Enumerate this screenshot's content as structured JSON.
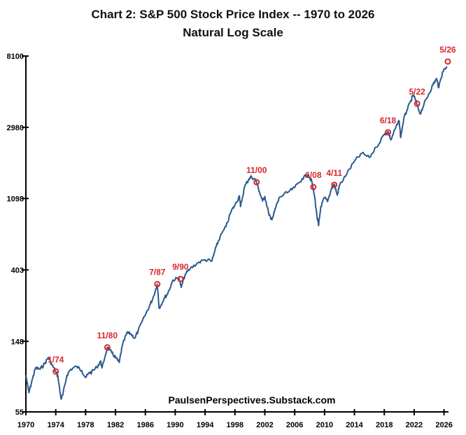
{
  "chart_data": {
    "type": "line",
    "title": "Chart 2: S&P 500 Stock Price Index -- 1970 to 2026",
    "subtitle": "Natural Log Scale",
    "source": "PaulsenPerspectives.Substack.com",
    "yscale": "log",
    "ylim": [
      55,
      8100
    ],
    "xlim": [
      1970,
      2026.6
    ],
    "x_ticks": [
      "1970",
      "1974",
      "1978",
      "1982",
      "1986",
      "1990",
      "1994",
      "1998",
      "2002",
      "2006",
      "2010",
      "2014",
      "2018",
      "2022",
      "2026"
    ],
    "y_ticks": [
      "55",
      "148",
      "403",
      "1098",
      "2980",
      "8100"
    ],
    "grid": false,
    "colors": {
      "line": "#2a5a8c",
      "annotation": "#d9262b",
      "axis": "#000000"
    },
    "series": [
      {
        "points": [
          [
            1970.0,
            92
          ],
          [
            1970.4,
            72
          ],
          [
            1970.9,
            88
          ],
          [
            1971.3,
            102
          ],
          [
            1971.9,
            100
          ],
          [
            1972.5,
            108
          ],
          [
            1973.0,
            118
          ],
          [
            1973.5,
            106
          ],
          [
            1974.0,
            97
          ],
          [
            1974.3,
            90
          ],
          [
            1974.7,
            66
          ],
          [
            1974.95,
            70
          ],
          [
            1975.5,
            92
          ],
          [
            1976.0,
            100
          ],
          [
            1976.8,
            104
          ],
          [
            1977.5,
            98
          ],
          [
            1978.0,
            89
          ],
          [
            1978.5,
            95
          ],
          [
            1978.8,
            96
          ],
          [
            1979.5,
            103
          ],
          [
            1980.0,
            112
          ],
          [
            1980.2,
            102
          ],
          [
            1980.9,
            136
          ],
          [
            1981.5,
            126
          ],
          [
            1982.0,
            118
          ],
          [
            1982.5,
            110
          ],
          [
            1982.9,
            138
          ],
          [
            1983.5,
            166
          ],
          [
            1984.0,
            165
          ],
          [
            1984.6,
            155
          ],
          [
            1985.0,
            170
          ],
          [
            1985.9,
            210
          ],
          [
            1986.5,
            240
          ],
          [
            1987.0,
            270
          ],
          [
            1987.6,
            330
          ],
          [
            1987.85,
            235
          ],
          [
            1988.5,
            270
          ],
          [
            1989.0,
            290
          ],
          [
            1989.7,
            350
          ],
          [
            1990.5,
            360
          ],
          [
            1990.8,
            315
          ],
          [
            1991.3,
            375
          ],
          [
            1992.0,
            410
          ],
          [
            1993.0,
            445
          ],
          [
            1994.0,
            465
          ],
          [
            1994.9,
            455
          ],
          [
            1995.5,
            560
          ],
          [
            1996.0,
            640
          ],
          [
            1996.8,
            740
          ],
          [
            1997.5,
            920
          ],
          [
            1998.0,
            1000
          ],
          [
            1998.6,
            1140
          ],
          [
            1998.75,
            980
          ],
          [
            1999.3,
            1300
          ],
          [
            1999.9,
            1450
          ],
          [
            2000.2,
            1490
          ],
          [
            2000.8,
            1420
          ],
          [
            2001.3,
            1200
          ],
          [
            2001.7,
            1060
          ],
          [
            2002.0,
            1130
          ],
          [
            2002.5,
            900
          ],
          [
            2002.8,
            820
          ],
          [
            2003.1,
            850
          ],
          [
            2003.5,
            980
          ],
          [
            2004.0,
            1120
          ],
          [
            2005.0,
            1190
          ],
          [
            2006.0,
            1280
          ],
          [
            2007.0,
            1450
          ],
          [
            2007.8,
            1540
          ],
          [
            2008.3,
            1390
          ],
          [
            2008.7,
            1100
          ],
          [
            2009.0,
            840
          ],
          [
            2009.2,
            750
          ],
          [
            2009.5,
            980
          ],
          [
            2010.0,
            1110
          ],
          [
            2010.4,
            1050
          ],
          [
            2011.0,
            1290
          ],
          [
            2011.3,
            1340
          ],
          [
            2011.7,
            1150
          ],
          [
            2012.0,
            1320
          ],
          [
            2013.0,
            1560
          ],
          [
            2014.0,
            1850
          ],
          [
            2015.0,
            2070
          ],
          [
            2016.0,
            1950
          ],
          [
            2016.9,
            2250
          ],
          [
            2018.0,
            2700
          ],
          [
            2018.5,
            2800
          ],
          [
            2018.9,
            2500
          ],
          [
            2019.5,
            2950
          ],
          [
            2020.0,
            3250
          ],
          [
            2020.2,
            2580
          ],
          [
            2020.6,
            3350
          ],
          [
            2021.0,
            3750
          ],
          [
            2021.6,
            4350
          ],
          [
            2021.9,
            4700
          ],
          [
            2022.3,
            4200
          ],
          [
            2022.8,
            3600
          ],
          [
            2023.3,
            4100
          ],
          [
            2023.9,
            4700
          ],
          [
            2024.5,
            5400
          ],
          [
            2025.0,
            5900
          ],
          [
            2025.3,
            5200
          ],
          [
            2025.8,
            6500
          ],
          [
            2026.4,
            7000
          ]
        ]
      }
    ],
    "annotations": [
      {
        "label": "1/74",
        "x": 1974.0,
        "y": 97
      },
      {
        "label": "11/80",
        "x": 1980.9,
        "y": 136
      },
      {
        "label": "7/87",
        "x": 1987.6,
        "y": 330
      },
      {
        "label": "9/90",
        "x": 1990.7,
        "y": 355
      },
      {
        "label": "11/00",
        "x": 2000.9,
        "y": 1380
      },
      {
        "label": "6/08",
        "x": 2008.5,
        "y": 1290
      },
      {
        "label": "4/11",
        "x": 2011.3,
        "y": 1330
      },
      {
        "label": "6/18",
        "x": 2018.5,
        "y": 2780
      },
      {
        "label": "5/22",
        "x": 2022.4,
        "y": 4150
      },
      {
        "label": "5/26",
        "x": 2026.5,
        "y": 7500
      }
    ]
  }
}
